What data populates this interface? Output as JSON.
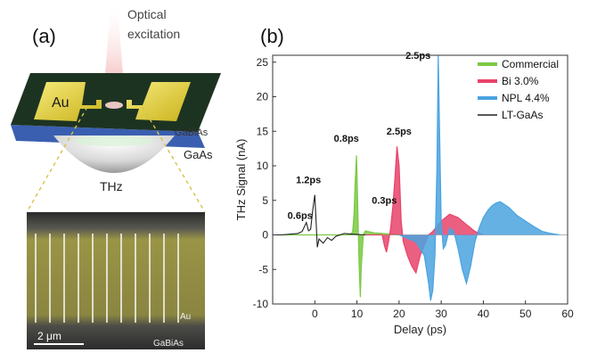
{
  "panel_a": {
    "label": "(a)",
    "excitation_label_line1": "Optical",
    "excitation_label_line2": "excitation",
    "electrode_label": "Au",
    "layer_top_label": "GaBiAs",
    "layer_substrate_label": "GaAs",
    "emission_label": "THz",
    "micrograph": {
      "au_label": "Au",
      "substrate_label": "GaBiAs",
      "scale_bar_label": "2 μm"
    },
    "colors": {
      "electrode": "#e6d33a",
      "substrate": "#3a5fb0",
      "film": "#1a3020",
      "micrograph_film": "#8f8a3a"
    }
  },
  "panel_b": {
    "label": "(b)"
  },
  "chart_data": {
    "type": "line",
    "xlabel": "Delay (ps)",
    "ylabel": "THz Signal (nA)",
    "xlim": [
      -10,
      60
    ],
    "ylim": [
      -10,
      26
    ],
    "xticks": [
      "0",
      "10",
      "20",
      "30",
      "40",
      "50",
      "60"
    ],
    "yticks": [
      "-10",
      "-5",
      "0",
      "5",
      "10",
      "15",
      "20",
      "25"
    ],
    "legend": {
      "placement": "top-right"
    },
    "series": [
      {
        "name": "Commercial",
        "color": "#7ac943",
        "fill": true,
        "x": [
          -8,
          8.5,
          9.0,
          9.3,
          9.6,
          9.9,
          10.0,
          10.2,
          10.5,
          10.8,
          11.0,
          11.5,
          12,
          14,
          16,
          20
        ],
        "y": [
          0,
          0,
          0.5,
          3,
          8,
          11.5,
          9,
          4,
          -4,
          -9,
          -5,
          0,
          0.6,
          0.3,
          0.2,
          0
        ]
      },
      {
        "name": "Bi 3.0%",
        "color": "#e8436b",
        "fill": true,
        "x": [
          12,
          16,
          16.5,
          17,
          17.5,
          18,
          18.5,
          19,
          19.5,
          20,
          20.5,
          21,
          22,
          23,
          24,
          25,
          26,
          27,
          28,
          30,
          32,
          34,
          36,
          38,
          40
        ],
        "y": [
          0,
          0,
          -1.5,
          -2.5,
          -1,
          1,
          4,
          8,
          12.8,
          10,
          2,
          -1,
          -3,
          -4.5,
          -5.5,
          -3,
          -1.5,
          0,
          0.5,
          2,
          3,
          2.5,
          1.5,
          0.5,
          0
        ]
      },
      {
        "name": "NPL 4.4%",
        "color": "#4aa3df",
        "fill": true,
        "x": [
          20,
          24,
          26,
          27,
          27.5,
          28,
          28.5,
          29,
          29.3,
          29.6,
          30,
          30.5,
          31,
          32,
          33,
          34,
          35,
          36,
          37,
          38,
          39,
          40,
          41,
          42,
          43,
          44,
          46,
          48,
          50,
          52,
          54,
          56,
          58
        ],
        "y": [
          0,
          -1,
          -3,
          -7,
          -9.5,
          -8,
          -3,
          10,
          26,
          15,
          2,
          -2,
          -1.5,
          1,
          0.5,
          -2,
          -5,
          -7,
          -4.5,
          -1,
          1,
          2.5,
          3.5,
          4.2,
          4.6,
          4.8,
          4,
          2.8,
          2,
          1.2,
          0.5,
          0.2,
          0
        ]
      },
      {
        "name": "LT-GaAs",
        "color": "#222222",
        "fill": false,
        "x": [
          -10,
          -8,
          -4,
          -3,
          -2,
          -1.5,
          -1,
          -0.5,
          0,
          0.3,
          0.6,
          1,
          2,
          3,
          4,
          5,
          7,
          9,
          12
        ],
        "y": [
          0,
          0,
          0.2,
          0.5,
          1.8,
          0.6,
          0.8,
          3.5,
          5.8,
          2,
          -1.8,
          -0.6,
          -1.2,
          -0.4,
          -0.8,
          -0.2,
          0.2,
          0.1,
          0
        ]
      }
    ],
    "annotations": [
      {
        "text": "0.6ps",
        "x": -3.5,
        "y": 2.3
      },
      {
        "text": "1.2ps",
        "x": -1.5,
        "y": 7.5
      },
      {
        "text": "0.8ps",
        "x": 7.5,
        "y": 13.5
      },
      {
        "text": "0.3ps",
        "x": 16.5,
        "y": 4.5
      },
      {
        "text": "2.5ps",
        "x": 20,
        "y": 14.5
      },
      {
        "text": "2.5ps",
        "x": 24.5,
        "y": 25.5
      }
    ]
  }
}
